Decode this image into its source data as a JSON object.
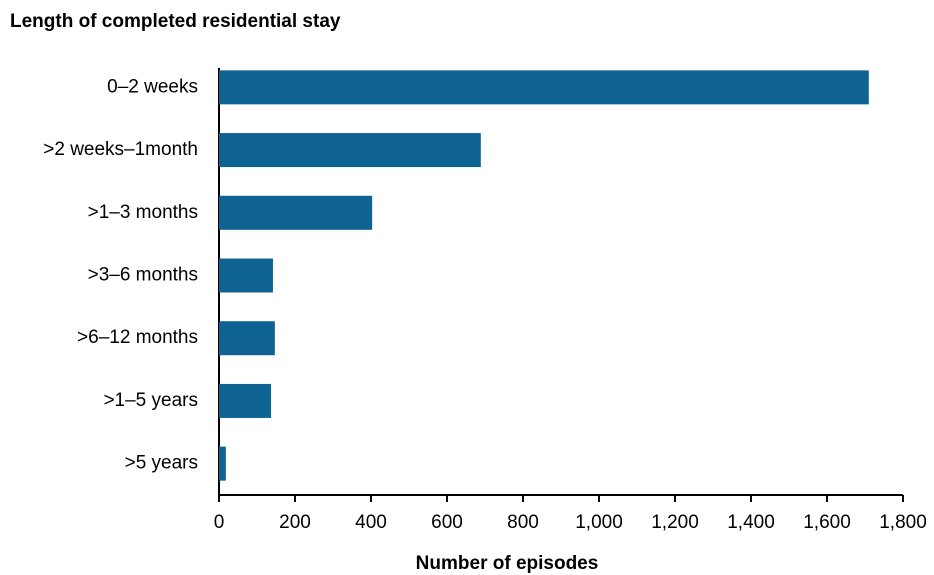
{
  "chart_data": {
    "type": "bar",
    "orientation": "horizontal",
    "title": "Length of completed residential stay",
    "xlabel": "Number of episodes",
    "categories": [
      "0–2 weeks",
      ">2 weeks–1month",
      ">1–3 months",
      ">3–6 months",
      ">6–12 months",
      ">1–5 years",
      ">5 years"
    ],
    "values": [
      1710,
      689,
      403,
      142,
      147,
      137,
      18
    ],
    "color": "#0e6392",
    "xlim": [
      0,
      1800
    ],
    "xticks": [
      0,
      200,
      400,
      600,
      800,
      {
        "value": 1000,
        "label": "1,000"
      },
      {
        "value": 1200,
        "label": "1,200"
      },
      {
        "value": 1400,
        "label": "1,400"
      },
      {
        "value": 1600,
        "label": "1,600"
      },
      {
        "value": 1800,
        "label": "1,800"
      }
    ],
    "grid": false
  }
}
